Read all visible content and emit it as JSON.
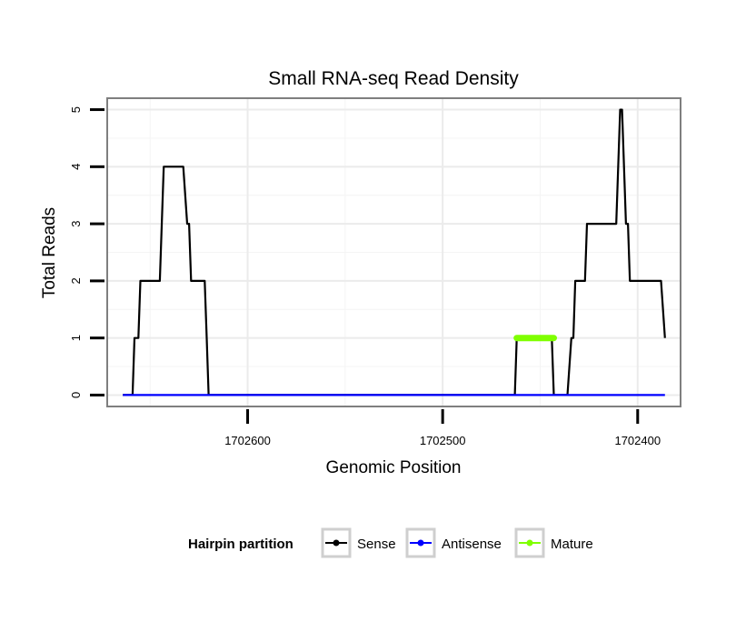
{
  "chart_data": {
    "type": "line",
    "title": "Small RNA-seq Read Density",
    "xlabel": "Genomic Position",
    "ylabel": "Total Reads",
    "x_reversed": true,
    "xlim": [
      1702672,
      1702378
    ],
    "ylim": [
      -0.2,
      5.2
    ],
    "x_ticks": [
      1702600,
      1702500,
      1702400
    ],
    "x_tick_labels": [
      "1702600",
      "1702500",
      "1702400"
    ],
    "y_ticks": [
      0,
      1,
      2,
      3,
      4,
      5
    ],
    "y_tick_labels": [
      "0",
      "1",
      "2",
      "3",
      "4",
      "5"
    ],
    "grid": true,
    "legend": {
      "title": "Hairpin partition",
      "position": "bottom",
      "entries": [
        "Sense",
        "Antisense",
        "Mature"
      ]
    },
    "series": [
      {
        "name": "Sense",
        "color": "#000000",
        "points": [
          [
            1702664,
            0
          ],
          [
            1702659,
            0
          ],
          [
            1702658,
            1
          ],
          [
            1702656,
            1
          ],
          [
            1702655,
            2
          ],
          [
            1702645,
            2
          ],
          [
            1702643,
            4
          ],
          [
            1702633,
            4
          ],
          [
            1702631,
            3
          ],
          [
            1702630,
            3
          ],
          [
            1702629,
            2
          ],
          [
            1702622,
            2
          ],
          [
            1702621,
            1
          ],
          [
            1702620,
            0
          ],
          [
            1702463,
            0
          ],
          [
            1702462,
            1
          ],
          [
            1702444,
            1
          ],
          [
            1702443,
            0
          ],
          [
            1702436,
            0
          ],
          [
            1702434,
            1
          ],
          [
            1702433,
            1
          ],
          [
            1702432,
            2
          ],
          [
            1702427,
            2
          ],
          [
            1702426,
            3
          ],
          [
            1702411,
            3
          ],
          [
            1702409,
            5
          ],
          [
            1702408,
            5
          ],
          [
            1702406,
            3
          ],
          [
            1702405,
            3
          ],
          [
            1702404,
            2
          ],
          [
            1702388,
            2
          ],
          [
            1702386,
            1
          ]
        ]
      },
      {
        "name": "Antisense",
        "color": "#0000ff",
        "points": [
          [
            1702664,
            0
          ],
          [
            1702386,
            0
          ]
        ]
      },
      {
        "name": "Mature",
        "color": "#7fff00",
        "points": [
          [
            1702462,
            1
          ],
          [
            1702443,
            1
          ]
        ]
      }
    ]
  }
}
